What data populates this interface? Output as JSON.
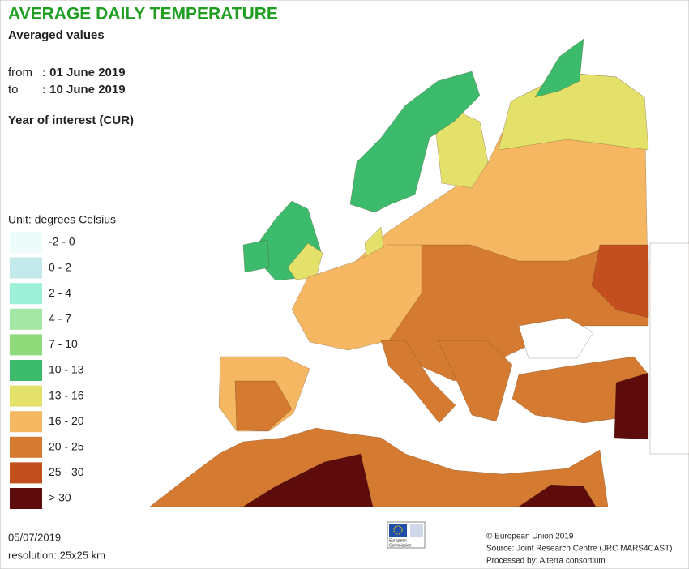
{
  "header": {
    "title": "AVERAGE DAILY TEMPERATURE",
    "subtitle": "Averaged values",
    "from_label": "from",
    "from_value": ": 01 June 2019",
    "to_label": "to",
    "to_value": ": 10 June 2019",
    "year": "Year of interest (CUR)"
  },
  "legend": {
    "unit": "Unit: degrees Celsius",
    "items": [
      {
        "label": "-2 - 0",
        "color": "#eefbfb"
      },
      {
        "label": "0 - 2",
        "color": "#c3e9ea"
      },
      {
        "label": "2 - 4",
        "color": "#9ef0d9"
      },
      {
        "label": "4 - 7",
        "color": "#a4e6a4"
      },
      {
        "label": "7 - 10",
        "color": "#8fdb7c"
      },
      {
        "label": "10 - 13",
        "color": "#3dbb6c"
      },
      {
        "label": "13 - 16",
        "color": "#e3e16a"
      },
      {
        "label": "16 - 20",
        "color": "#f6b762"
      },
      {
        "label": "20 - 25",
        "color": "#d57a31"
      },
      {
        "label": "25 - 30",
        "color": "#c34f1e"
      },
      {
        "label": "> 30",
        "color": "#5e0b0b"
      }
    ]
  },
  "footer": {
    "date": "05/07/2019",
    "resolution": "resolution: 25x25 km",
    "logo_line1": "European",
    "logo_line2": "Commission",
    "copyright": "© European Union 2019",
    "source": "Source: Joint Research Centre (JRC MARS4CAST)",
    "processed": "Processed by: Alterra consortium"
  }
}
